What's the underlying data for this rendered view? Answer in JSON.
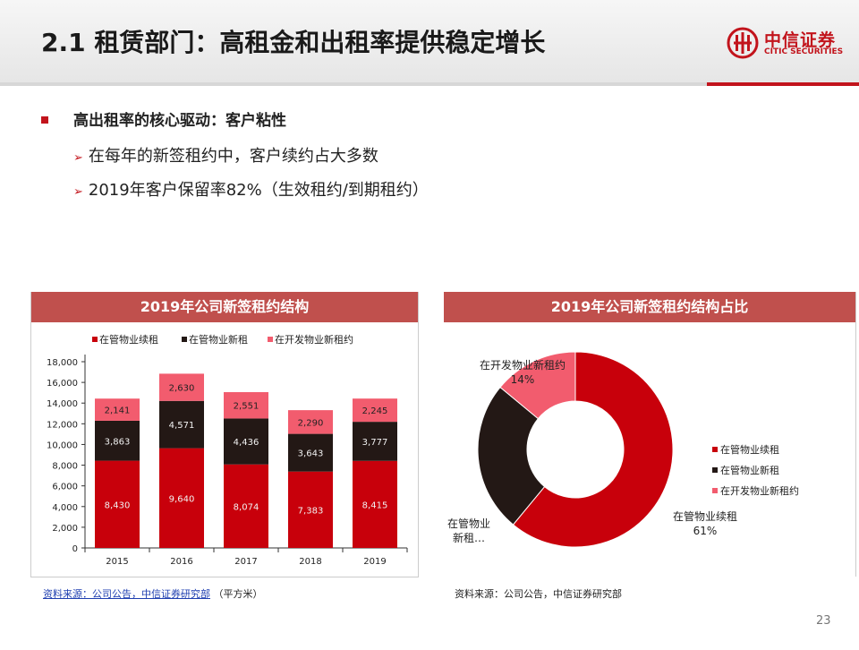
{
  "header": {
    "title": "2.1 租赁部门：高租金和出租率提供稳定增长",
    "logo_cn": "中信证券",
    "logo_en": "CITIC SECURITIES"
  },
  "bullets": {
    "main": "高出租率的核心驱动：客户粘性",
    "sub": [
      "在每年的新签租约中，客户续约占大多数",
      "2019年客户保留率82%（生效租约/到期租约）"
    ]
  },
  "colors": {
    "renew": "#c8000b",
    "new_managed": "#231815",
    "new_dev": "#f25c6e",
    "header": "#c0504d",
    "accent": "#c2141c"
  },
  "chart_data": [
    {
      "type": "bar",
      "title": "2019年公司新签租约结构",
      "categories": [
        "2015",
        "2016",
        "2017",
        "2018",
        "2019"
      ],
      "series": [
        {
          "name": "在管物业续租",
          "values": [
            8430,
            9640,
            8074,
            7383,
            8415
          ],
          "labels": [
            "8,430",
            "9,640",
            "8,074",
            "7,383",
            "8,415"
          ]
        },
        {
          "name": "在管物业新租",
          "values": [
            3863,
            4571,
            4436,
            3643,
            3777
          ],
          "labels": [
            "3,863",
            "4,571",
            "4,436",
            "3,643",
            "3,777"
          ]
        },
        {
          "name": "在开发物业新租约",
          "values": [
            2141,
            2630,
            2551,
            2290,
            2245
          ],
          "labels": [
            "2,141",
            "2,630",
            "2,551",
            "2,290",
            "2,245"
          ]
        }
      ],
      "ylim": [
        0,
        18000
      ],
      "yticks": [
        0,
        2000,
        4000,
        6000,
        8000,
        10000,
        12000,
        14000,
        16000,
        18000
      ],
      "ytick_labels": [
        "0",
        "2,000",
        "4,000",
        "6,000",
        "8,000",
        "10,000",
        "12,000",
        "14,000",
        "16,000",
        "18,000"
      ],
      "stacked": true,
      "legend": "top"
    },
    {
      "type": "pie",
      "title": "2019年公司新签租约结构占比",
      "donut": true,
      "slices": [
        {
          "name": "在管物业续租",
          "value": 61,
          "label_name": "在管物业续租",
          "label_pct": "61%"
        },
        {
          "name": "在管物业新租",
          "value": 25,
          "label_name": "在管物业新租…",
          "label_pct": ""
        },
        {
          "name": "在开发物业新租约",
          "value": 14,
          "label_name": "在开发物业新租约",
          "label_pct": "14%"
        }
      ],
      "legend": "right"
    }
  ],
  "sources": {
    "left_link": "资料来源：公司公告，中信证券研究部",
    "left_unit": "（平方米）",
    "right": "资料来源：公司公告，中信证券研究部"
  },
  "page_number": "23"
}
